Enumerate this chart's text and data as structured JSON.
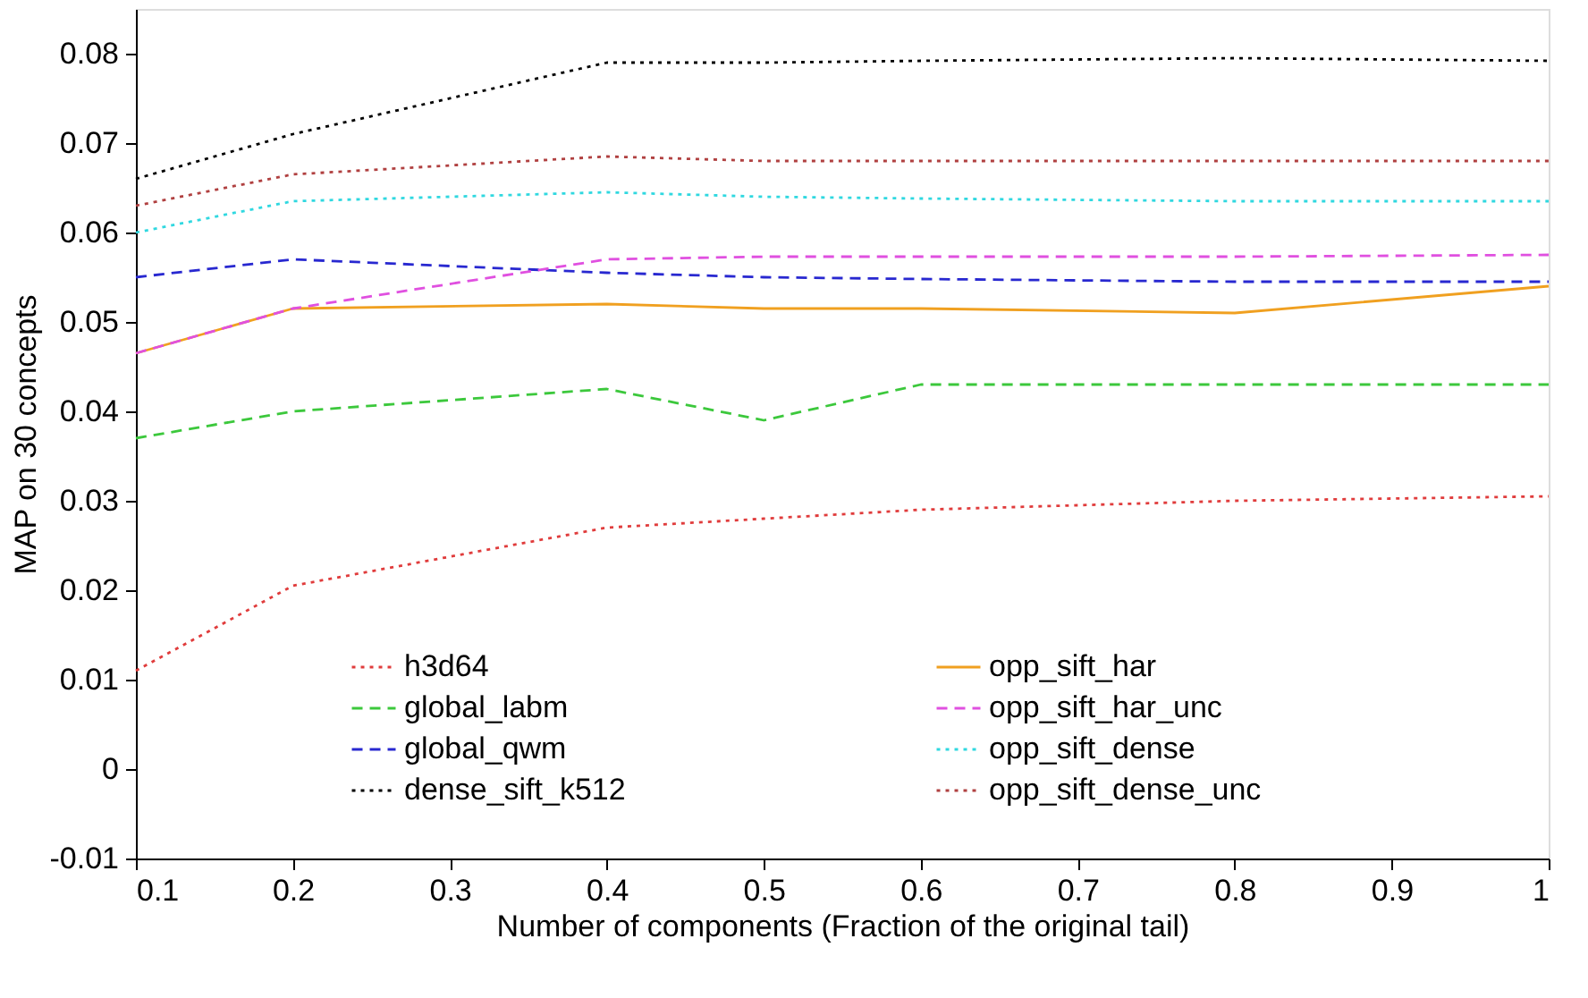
{
  "chart_data": {
    "type": "line",
    "xlabel": "Number of components (Fraction of the original tail)",
    "ylabel": "MAP on 30 concepts",
    "x": [
      0.1,
      0.2,
      0.4,
      0.5,
      0.6,
      0.8,
      1
    ],
    "xlim": [
      0.1,
      1
    ],
    "xticks": [
      0.1,
      0.2,
      0.3,
      0.4,
      0.5,
      0.6,
      0.7,
      0.8,
      0.9,
      1
    ],
    "ylim": [
      -0.01,
      0.085
    ],
    "yticks": [
      -0.01,
      0,
      0.01,
      0.02,
      0.03,
      0.04,
      0.05,
      0.06,
      0.07,
      0.08
    ],
    "grid": false,
    "legend": "bottom",
    "marker": "none",
    "series": [
      {
        "name": "h3d64",
        "color": "#e03c3c",
        "line_style": "dotted",
        "values": [
          0.011,
          0.0205,
          0.027,
          0.028,
          0.029,
          0.03,
          0.0305
        ]
      },
      {
        "name": "global_labm",
        "color": "#3cc83c",
        "line_style": "dashed",
        "values": [
          0.037,
          0.04,
          0.0425,
          0.039,
          0.043,
          0.043,
          0.043
        ]
      },
      {
        "name": "global_qwm",
        "color": "#2828d0",
        "line_style": "dashed",
        "values": [
          0.055,
          0.057,
          0.0555,
          0.055,
          0.0548,
          0.0545,
          0.0545
        ]
      },
      {
        "name": "dense_sift_k512",
        "color": "#000000",
        "line_style": "dotted",
        "values": [
          0.066,
          0.071,
          0.079,
          0.079,
          0.0792,
          0.0795,
          0.0792
        ]
      },
      {
        "name": "opp_sift_har",
        "color": "#f0a020",
        "line_style": "solid",
        "values": [
          0.0465,
          0.0515,
          0.052,
          0.0515,
          0.0515,
          0.051,
          0.054
        ]
      },
      {
        "name": "opp_sift_har_unc",
        "color": "#e050e0",
        "line_style": "dashed",
        "values": [
          0.0465,
          0.0515,
          0.057,
          0.0573,
          0.0573,
          0.0573,
          0.0575
        ]
      },
      {
        "name": "opp_sift_dense",
        "color": "#30d8e0",
        "line_style": "dotted",
        "values": [
          0.06,
          0.0635,
          0.0645,
          0.064,
          0.0638,
          0.0635,
          0.0635
        ]
      },
      {
        "name": "opp_sift_dense_unc",
        "color": "#b04040",
        "line_style": "dotted",
        "values": [
          0.063,
          0.0665,
          0.0685,
          0.068,
          0.068,
          0.068,
          0.068
        ]
      }
    ]
  }
}
